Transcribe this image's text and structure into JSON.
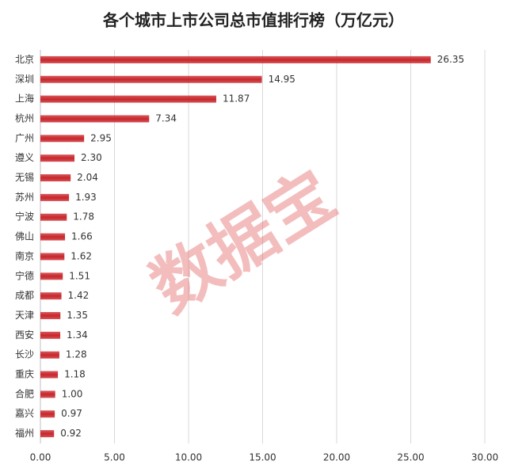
{
  "chart_data": {
    "type": "barh",
    "title": "各个城市上市公司总市值排行榜（万亿元）",
    "watermark": "数据宝",
    "categories": [
      "北京",
      "深圳",
      "上海",
      "杭州",
      "广州",
      "遵义",
      "无锡",
      "苏州",
      "宁波",
      "佛山",
      "南京",
      "宁德",
      "成都",
      "天津",
      "西安",
      "长沙",
      "重庆",
      "合肥",
      "嘉兴",
      "福州"
    ],
    "values": [
      26.35,
      14.95,
      11.87,
      7.34,
      2.95,
      2.3,
      2.04,
      1.93,
      1.78,
      1.66,
      1.62,
      1.51,
      1.42,
      1.35,
      1.34,
      1.28,
      1.18,
      1.0,
      0.97,
      0.92
    ],
    "value_labels": [
      "26.35",
      "14.95",
      "11.87",
      "7.34",
      "2.95",
      "2.30",
      "2.04",
      "1.93",
      "1.78",
      "1.66",
      "1.62",
      "1.51",
      "1.42",
      "1.35",
      "1.34",
      "1.28",
      "1.18",
      "1.00",
      "0.97",
      "0.92"
    ],
    "color": "#c8262b",
    "xlim": [
      0,
      30
    ],
    "xticks": [
      {
        "value": 0,
        "label": "0.00"
      },
      {
        "value": 5,
        "label": "5.00"
      },
      {
        "value": 10,
        "label": "10.00"
      },
      {
        "value": 15,
        "label": "15.00"
      },
      {
        "value": 20,
        "label": "20.00"
      },
      {
        "value": 25,
        "label": "25.00"
      },
      {
        "value": 30,
        "label": "30.00"
      }
    ],
    "grid": true
  }
}
